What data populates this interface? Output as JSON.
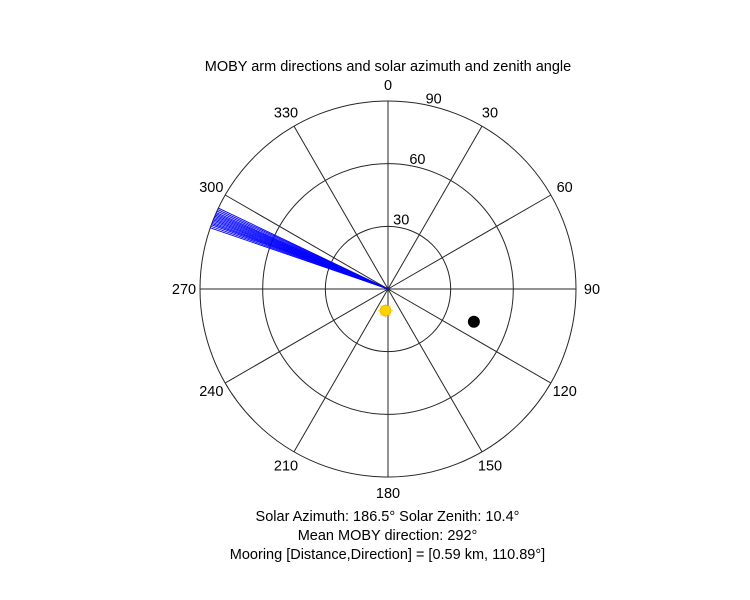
{
  "chart_data": {
    "type": "polar",
    "title": "MOBY arm directions and solar azimuth and zenith angle",
    "angular_axis": {
      "zero_location": "top",
      "direction": "clockwise",
      "tick_labels": [
        "0",
        "30",
        "60",
        "90",
        "120",
        "150",
        "180",
        "210",
        "240",
        "270",
        "300",
        "330"
      ]
    },
    "radial_axis": {
      "range": [
        0,
        90
      ],
      "ticks": [
        30,
        60,
        90
      ],
      "tick_labels": [
        "30",
        "60",
        "90"
      ],
      "tick_label_angle_deg": 15
    },
    "grid": true,
    "series": [
      {
        "kind": "arm_directions",
        "color": "#0000ff",
        "azimuth_deg": [
          289.0,
          289.5,
          290.0,
          290.4,
          290.8,
          291.2,
          291.6,
          292.0,
          292.4,
          292.8,
          293.2,
          293.6,
          294.0,
          294.5,
          295.0,
          295.5
        ],
        "radius": 90
      },
      {
        "kind": "sun",
        "color": "#ffd400",
        "azimuth_deg": 186.5,
        "zenith_deg": 10.4
      },
      {
        "kind": "mooring",
        "color": "#000000",
        "azimuth_deg": 110.89,
        "radius": 44
      }
    ],
    "annotations": [
      "Solar Azimuth: 186.5°   Solar Zenith: 10.4°",
      "Mean MOBY direction: 292°",
      "Mooring [Distance,Direction] = [0.59 km, 110.89°]"
    ]
  }
}
